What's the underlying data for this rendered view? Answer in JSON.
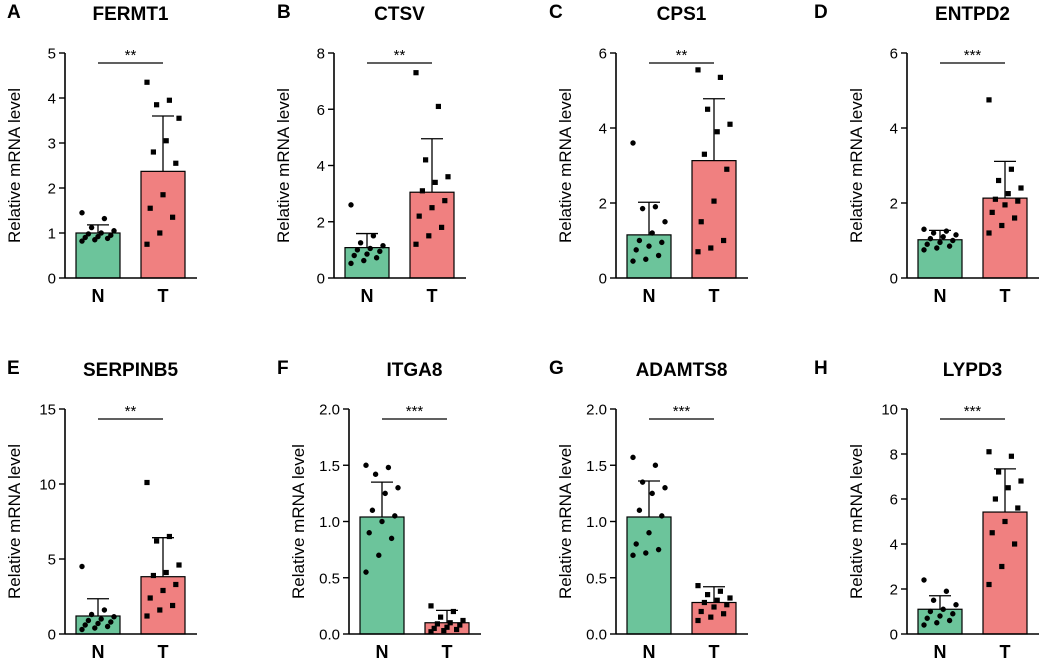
{
  "figure": {
    "y_axis_label": "Relative mRNA level",
    "colors": {
      "N": "#6cc49b",
      "T": "#f08080",
      "axis": "#000000",
      "point": "#000000"
    }
  },
  "chart_data": [
    {
      "panel": "A",
      "title": "FERMT1",
      "type": "bar",
      "categories": [
        "N",
        "T"
      ],
      "ylim": [
        0,
        5
      ],
      "yticks": [
        0,
        1,
        2,
        3,
        4,
        5
      ],
      "ytick_labels": [
        "0",
        "1",
        "2",
        "3",
        "4",
        "5"
      ],
      "ylabel": "Relative mRNA level",
      "means": [
        1.0,
        2.37
      ],
      "sd": [
        0.18,
        1.23
      ],
      "significance": "**",
      "points": {
        "N": [
          1.45,
          1.32,
          1.12,
          1.05,
          1.0,
          0.98,
          0.95,
          0.92,
          0.9,
          0.88,
          0.85,
          0.82
        ],
        "T": [
          4.35,
          3.95,
          3.85,
          3.55,
          3.05,
          2.8,
          2.55,
          1.85,
          1.55,
          1.35,
          1.0,
          0.75
        ]
      }
    },
    {
      "panel": "B",
      "title": "CTSV",
      "type": "bar",
      "categories": [
        "N",
        "T"
      ],
      "ylim": [
        0,
        8
      ],
      "yticks": [
        0,
        2,
        4,
        6,
        8
      ],
      "ytick_labels": [
        "0",
        "2",
        "4",
        "6",
        "8"
      ],
      "ylabel": "Relative mRNA level",
      "means": [
        1.08,
        3.05
      ],
      "sd": [
        0.5,
        1.9
      ],
      "significance": "**",
      "points": {
        "N": [
          2.6,
          1.5,
          1.25,
          1.15,
          1.05,
          1.0,
          0.95,
          0.85,
          0.8,
          0.72,
          0.62,
          0.52
        ],
        "T": [
          7.3,
          6.1,
          4.2,
          3.6,
          3.4,
          3.1,
          2.75,
          2.5,
          2.2,
          1.8,
          1.5,
          1.2
        ]
      }
    },
    {
      "panel": "C",
      "title": "CPS1",
      "type": "bar",
      "categories": [
        "N",
        "T"
      ],
      "ylim": [
        0,
        6
      ],
      "yticks": [
        0,
        2,
        4,
        6
      ],
      "ytick_labels": [
        "0",
        "2",
        "4",
        "6"
      ],
      "ylabel": "Relative mRNA level",
      "means": [
        1.15,
        3.13
      ],
      "sd": [
        0.87,
        1.65
      ],
      "significance": "**",
      "points": {
        "N": [
          3.6,
          1.9,
          1.85,
          1.5,
          1.2,
          1.0,
          0.95,
          0.85,
          0.75,
          0.6,
          0.5,
          0.45
        ],
        "T": [
          5.55,
          5.35,
          4.5,
          4.1,
          3.9,
          3.3,
          2.9,
          2.05,
          1.5,
          1.0,
          0.8,
          0.7
        ]
      }
    },
    {
      "panel": "D",
      "title": "ENTPD2",
      "type": "bar",
      "categories": [
        "N",
        "T"
      ],
      "ylim": [
        0,
        6
      ],
      "yticks": [
        0,
        2,
        4,
        6
      ],
      "ytick_labels": [
        "0",
        "2",
        "4",
        "6"
      ],
      "ylabel": "Relative mRNA level",
      "means": [
        1.02,
        2.13
      ],
      "sd": [
        0.25,
        0.98
      ],
      "significance": "***",
      "points": {
        "N": [
          1.3,
          1.25,
          1.2,
          1.15,
          1.1,
          1.05,
          1.0,
          0.95,
          0.9,
          0.85,
          0.8,
          0.75
        ],
        "T": [
          4.75,
          2.9,
          2.6,
          2.4,
          2.25,
          2.1,
          2.05,
          1.95,
          1.75,
          1.6,
          1.4,
          1.2
        ]
      }
    },
    {
      "panel": "E",
      "title": "SERPINB5",
      "type": "bar",
      "categories": [
        "N",
        "T"
      ],
      "ylim": [
        0,
        15
      ],
      "yticks": [
        0,
        5,
        10,
        15
      ],
      "ytick_labels": [
        "0",
        "5",
        "10",
        "15"
      ],
      "ylabel": "Relative mRNA level",
      "means": [
        1.2,
        3.82
      ],
      "sd": [
        1.15,
        2.6
      ],
      "significance": "**",
      "points": {
        "N": [
          4.5,
          1.6,
          1.3,
          1.15,
          1.0,
          0.9,
          0.8,
          0.7,
          0.6,
          0.5,
          0.4,
          0.3
        ],
        "T": [
          10.1,
          6.5,
          6.2,
          4.6,
          4.1,
          3.9,
          3.3,
          2.9,
          2.4,
          1.9,
          1.6,
          1.2
        ]
      }
    },
    {
      "panel": "F",
      "title": "ITGA8",
      "type": "bar",
      "categories": [
        "N",
        "T"
      ],
      "ylim": [
        0,
        2.0
      ],
      "yticks": [
        0,
        0.5,
        1.0,
        1.5,
        2.0
      ],
      "ytick_labels": [
        "0.0",
        "0.5",
        "1.0",
        "1.5",
        "2.0"
      ],
      "ylabel": "Relative mRNA level",
      "means": [
        1.04,
        0.1
      ],
      "sd": [
        0.31,
        0.11
      ],
      "significance": "***",
      "points": {
        "N": [
          1.5,
          1.48,
          1.42,
          1.3,
          1.25,
          1.1,
          1.05,
          1.0,
          0.9,
          0.85,
          0.7,
          0.55
        ],
        "T": [
          0.25,
          0.2,
          0.15,
          0.12,
          0.1,
          0.09,
          0.08,
          0.06,
          0.05,
          0.04,
          0.03,
          0.02
        ]
      }
    },
    {
      "panel": "G",
      "title": "ADAMTS8",
      "type": "bar",
      "categories": [
        "N",
        "T"
      ],
      "ylim": [
        0,
        2.0
      ],
      "yticks": [
        0,
        0.5,
        1.0,
        1.5,
        2.0
      ],
      "ytick_labels": [
        "0.0",
        "0.5",
        "1.0",
        "1.5",
        "2.0"
      ],
      "ylabel": "Relative mRNA level",
      "means": [
        1.04,
        0.28
      ],
      "sd": [
        0.32,
        0.14
      ],
      "significance": "***",
      "points": {
        "N": [
          1.57,
          1.5,
          1.35,
          1.3,
          1.25,
          1.1,
          1.05,
          0.9,
          0.8,
          0.75,
          0.72,
          0.7
        ],
        "T": [
          0.43,
          0.38,
          0.35,
          0.32,
          0.3,
          0.28,
          0.26,
          0.24,
          0.2,
          0.18,
          0.15,
          0.12
        ]
      }
    },
    {
      "panel": "H",
      "title": "LYPD3",
      "type": "bar",
      "categories": [
        "N",
        "T"
      ],
      "ylim": [
        0,
        10
      ],
      "yticks": [
        0,
        2,
        4,
        6,
        8,
        10
      ],
      "ytick_labels": [
        "0",
        "2",
        "4",
        "6",
        "8",
        "10"
      ],
      "ylabel": "Relative mRNA level",
      "means": [
        1.1,
        5.42
      ],
      "sd": [
        0.6,
        1.92
      ],
      "significance": "***",
      "points": {
        "N": [
          2.4,
          1.9,
          1.5,
          1.3,
          1.1,
          1.0,
          0.9,
          0.8,
          0.7,
          0.6,
          0.5,
          0.4
        ],
        "T": [
          8.1,
          7.9,
          7.2,
          6.8,
          6.5,
          6.0,
          5.6,
          5.0,
          4.5,
          4.0,
          3.0,
          2.2
        ]
      }
    }
  ]
}
